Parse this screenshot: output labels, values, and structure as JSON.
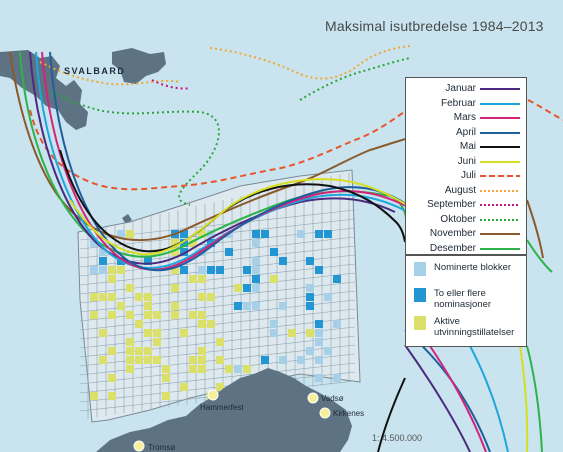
{
  "title": "Maksimal isutbredelse 1984–2013",
  "scale": "1: 4.500.000",
  "places": {
    "svalbard": "SVALBARD",
    "hammerfest": "Hammerfest",
    "vadso": "Vadsø",
    "kirkenes": "Kirkenes",
    "tromso": "Tromsø"
  },
  "legend_months": [
    {
      "label": "Januar",
      "color": "#4b2a7f",
      "style": "solid"
    },
    {
      "label": "Februar",
      "color": "#1fa6dc",
      "style": "solid"
    },
    {
      "label": "Mars",
      "color": "#d4237a",
      "style": "solid"
    },
    {
      "label": "April",
      "color": "#1f5f9e",
      "style": "solid"
    },
    {
      "label": "Mai",
      "color": "#111111",
      "style": "solid"
    },
    {
      "label": "Juni",
      "color": "#d6df1f",
      "style": "solid"
    },
    {
      "label": "Juli",
      "color": "#e8552b",
      "style": "dashed"
    },
    {
      "label": "August",
      "color": "#f2a633",
      "style": "dotted"
    },
    {
      "label": "September",
      "color": "#c5157f",
      "style": "dotted"
    },
    {
      "label": "Oktober",
      "color": "#2aa53a",
      "style": "dotted"
    },
    {
      "label": "November",
      "color": "#8a5a2b",
      "style": "solid"
    },
    {
      "label": "Desember",
      "color": "#2db34a",
      "style": "solid"
    }
  ],
  "legend_blocks": [
    {
      "label": "Nominerte blokker",
      "color": "#a6cfe8"
    },
    {
      "label": "To eller flere nominasjoner",
      "color": "#2196d3"
    },
    {
      "label": "Aktive utvinningstillatelser",
      "color": "#dbe06b"
    }
  ]
}
